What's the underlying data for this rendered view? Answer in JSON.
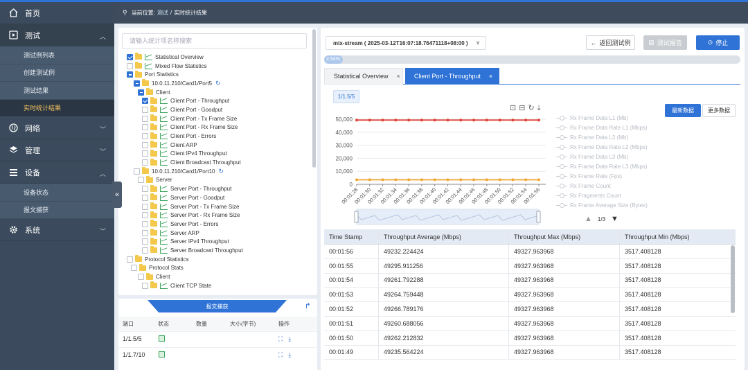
{
  "sidebar": {
    "items": [
      {
        "label": "首页",
        "icon": "home-icon"
      },
      {
        "label": "测试",
        "icon": "play-icon"
      },
      {
        "label": "网络",
        "icon": "globe-icon"
      },
      {
        "label": "管理",
        "icon": "layers-icon"
      },
      {
        "label": "设备",
        "icon": "stack-icon"
      },
      {
        "label": "系统",
        "icon": "gear-icon"
      }
    ],
    "test_subitems": [
      "测试例列表",
      "创建测试例",
      "测试结果",
      "实时统计结果"
    ],
    "device_subitems": [
      "设备状态",
      "报文捕获"
    ]
  },
  "breadcrumb": {
    "prefix": "当前位置:",
    "parent": "测试",
    "sep": "/",
    "current": "实时统计结果"
  },
  "tree": {
    "search_placeholder": "请输入统计项名称搜索",
    "nodes": [
      "Statistical Overview",
      "Mixed Flow Statistics",
      "Port Statistics",
      "10.0.11.210/Card1/Port5",
      "Client",
      "Client Port - Throughput",
      "Client Port - Goodput",
      "Client Port - Tx Frame Size",
      "Client Port - Rx Frame Size",
      "Client Port - Errors",
      "Client ARP",
      "Client IPv4 Throughput",
      "Client Broadcast Throughput",
      "10.0.11.210/Card1/Port10",
      "Server",
      "Server Port - Throughput",
      "Server Port - Goodput",
      "Server Port - Tx Frame Size",
      "Server Port - Rx Frame Size",
      "Server Port - Errors",
      "Server ARP",
      "Server IPv4 Throughput",
      "Server Broadcast Throughput",
      "Protocol Statistics",
      "Protocol Stats",
      "Client",
      "Client TCP State"
    ]
  },
  "capture": {
    "tab": "报文捕获",
    "columns": [
      "端口",
      "状态",
      "数量",
      "大小(字节)",
      "操作"
    ],
    "rows": [
      {
        "port": "1/1.5/5"
      },
      {
        "port": "1/1.7/10"
      }
    ]
  },
  "main": {
    "stream": "mix-stream ( 2025-03-12T16:07:18.76471118+08:00 )",
    "back": "返回测试例",
    "report": "测试报告",
    "stop": "停止",
    "progress": "2.94%",
    "progress_value": 2.94,
    "tabs": [
      "Statistical Overview",
      "Client Port - Throughput"
    ],
    "port_chip": "1/1.5/5",
    "latest": "最新数据",
    "more": "更多数据",
    "legend": [
      "Rx Frame Data L1 (Mb)",
      "Rx Frame Data Rate L1 (Mbps)",
      "Rx Frame Data L2 (Mb)",
      "Rx Frame Data Rate L2 (Mbps)",
      "Rx Frame Data L3 (Mb)",
      "Rx Frame Data Rate L3 (Mbps)",
      "Rx Frame Rate (Fps)",
      "Rx Frame Count",
      "Rx Fragments Count",
      "Rx Frame Average Size (Bytes)"
    ],
    "pager": "1/3"
  },
  "chart_data": {
    "type": "line",
    "x": [
      "00:01:28",
      "00:01:30",
      "00:01:32",
      "00:01:34",
      "00:01:36",
      "00:01:38",
      "00:01:40",
      "00:01:42",
      "00:01:44",
      "00:01:46",
      "00:01:48",
      "00:01:50",
      "00:01:52",
      "00:01:54",
      "00:01:56"
    ],
    "yticks": [
      0,
      10000,
      20000,
      30000,
      40000,
      50000
    ],
    "ylim": [
      0,
      50000
    ],
    "series": [
      {
        "color": "#e0463b",
        "values": [
          49300,
          49300,
          49300,
          49300,
          49300,
          49300,
          49300,
          49300,
          49300,
          49300,
          49300,
          49300,
          49300,
          49300,
          49300
        ]
      },
      {
        "color": "#f0a83a",
        "values": [
          3500,
          3500,
          3500,
          3500,
          3500,
          3500,
          3500,
          3500,
          3500,
          3500,
          3500,
          3500,
          3500,
          3500,
          3500
        ]
      }
    ],
    "grid": true
  },
  "table": {
    "headers": [
      "Time Stamp",
      "Throughput Average (Mbps)",
      "Throughput Max (Mbps)",
      "Throughput Min (Mbps)"
    ],
    "rows": [
      [
        "00:01:56",
        "49232.224424",
        "49327.963968",
        "3517.408128"
      ],
      [
        "00:01:55",
        "49295.911256",
        "49327.963968",
        "3517.408128"
      ],
      [
        "00:01:54",
        "49261.792288",
        "49327.963968",
        "3517.408128"
      ],
      [
        "00:01:53",
        "49264.759448",
        "49327.963968",
        "3517.408128"
      ],
      [
        "00:01:52",
        "49266.789176",
        "49327.963968",
        "3517.408128"
      ],
      [
        "00:01:51",
        "49260.688056",
        "49327.963968",
        "3517.408128"
      ],
      [
        "00:01:50",
        "49262.212832",
        "49327.963968",
        "3517.408128"
      ],
      [
        "00:01:49",
        "49235.564224",
        "49327.963968",
        "3517.408128"
      ]
    ]
  }
}
